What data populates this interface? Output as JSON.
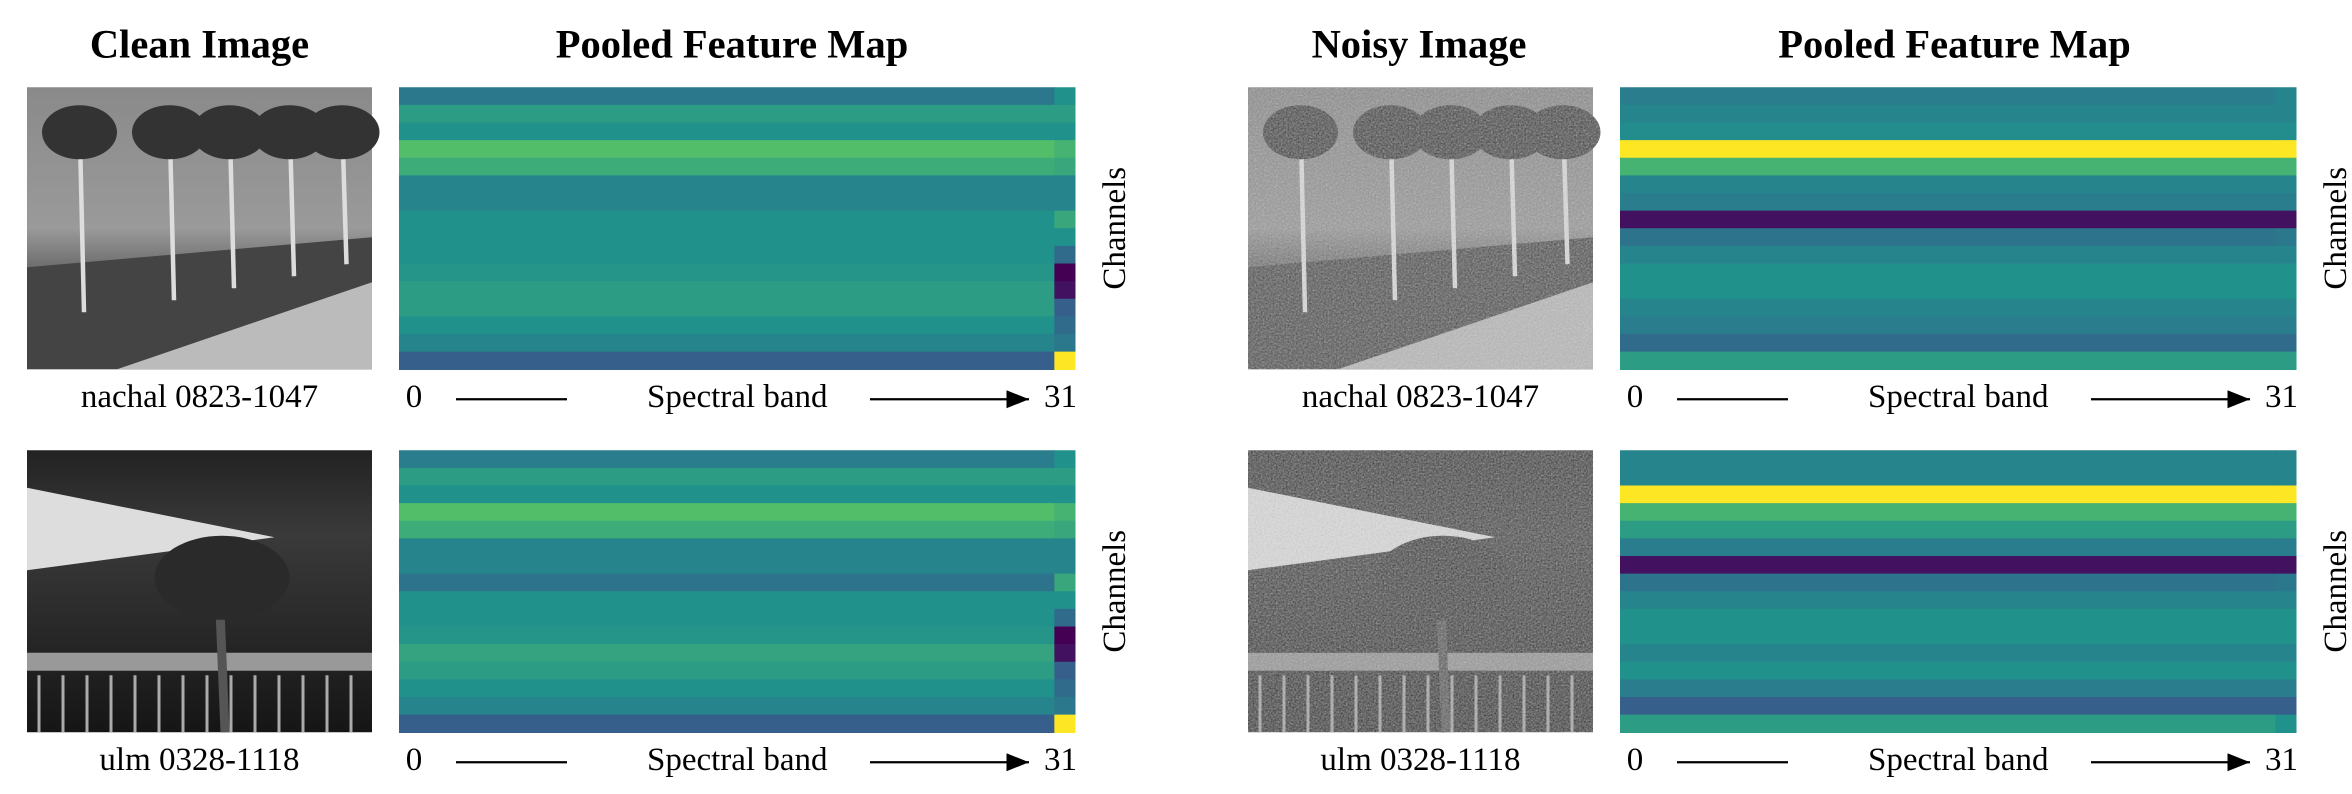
{
  "headers": [
    "Clean Image",
    "Pooled Feature Map",
    "Noisy Image",
    "Pooled Feature Map"
  ],
  "panels": [
    {
      "image_label": "nachal 0823-1047",
      "x_start": 0,
      "x_label": "Spectral band",
      "x_end": 31,
      "y_label": "Channels",
      "heatmap": {
        "rows": [
          0.4,
          0.55,
          0.5,
          0.7,
          0.62,
          0.45,
          0.45,
          0.5,
          0.5,
          0.5,
          0.52,
          0.55,
          0.55,
          0.5,
          0.45,
          0.3
        ],
        "last_column": [
          0.5,
          0.55,
          0.5,
          0.65,
          0.6,
          0.45,
          0.45,
          0.6,
          0.5,
          0.35,
          0.0,
          0.05,
          0.3,
          0.35,
          0.4,
          1.0
        ]
      }
    },
    {
      "image_label": "nachal 0823-1047",
      "x_start": 0,
      "x_label": "Spectral band",
      "x_end": 31,
      "y_label": "Channels",
      "heatmap": {
        "rows": [
          0.42,
          0.45,
          0.48,
          1.0,
          0.65,
          0.45,
          0.42,
          0.05,
          0.38,
          0.45,
          0.5,
          0.5,
          0.45,
          0.42,
          0.35,
          0.55
        ],
        "last_column": [
          0.45,
          0.45,
          0.48,
          1.0,
          0.65,
          0.45,
          0.42,
          0.05,
          0.4,
          0.45,
          0.5,
          0.5,
          0.45,
          0.42,
          0.35,
          0.55
        ]
      }
    },
    {
      "image_label": "ulm 0328-1118",
      "x_start": 0,
      "x_label": "Spectral band",
      "x_end": 31,
      "y_label": "Channels",
      "heatmap": {
        "rows": [
          0.42,
          0.55,
          0.5,
          0.7,
          0.62,
          0.45,
          0.45,
          0.38,
          0.5,
          0.5,
          0.52,
          0.58,
          0.55,
          0.5,
          0.45,
          0.3
        ],
        "last_column": [
          0.5,
          0.55,
          0.5,
          0.65,
          0.6,
          0.45,
          0.45,
          0.6,
          0.5,
          0.35,
          0.0,
          0.05,
          0.3,
          0.35,
          0.4,
          1.0
        ]
      }
    },
    {
      "image_label": "ulm 0328-1118",
      "x_start": 0,
      "x_label": "Spectral band",
      "x_end": 31,
      "y_label": "Channels",
      "heatmap": {
        "rows": [
          0.45,
          0.45,
          1.0,
          0.65,
          0.55,
          0.42,
          0.05,
          0.38,
          0.45,
          0.5,
          0.5,
          0.45,
          0.5,
          0.42,
          0.3,
          0.55
        ],
        "last_column": [
          0.45,
          0.45,
          1.0,
          0.65,
          0.55,
          0.42,
          0.05,
          0.4,
          0.45,
          0.5,
          0.5,
          0.45,
          0.5,
          0.42,
          0.3,
          0.5
        ]
      }
    }
  ]
}
